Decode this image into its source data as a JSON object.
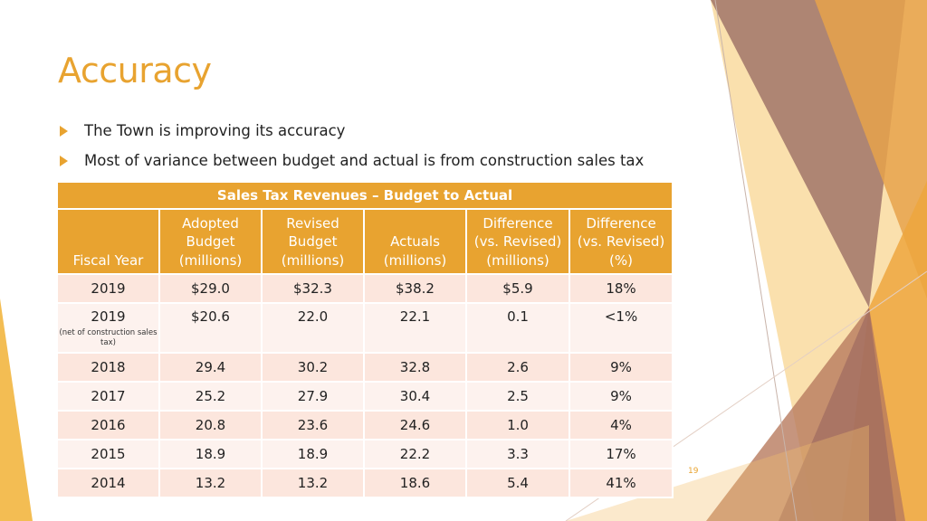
{
  "slide": {
    "title": "Accuracy",
    "bullets": [
      "The Town is improving its accuracy",
      "Most of variance between budget and actual is from construction sales tax"
    ],
    "page_number": "19"
  },
  "table": {
    "caption": "Sales Tax Revenues – Budget to Actual",
    "headers": [
      [
        "Fiscal Year"
      ],
      [
        "Adopted",
        "Budget",
        "(millions)"
      ],
      [
        "Revised",
        "Budget",
        "(millions)"
      ],
      [
        "Actuals",
        "(millions)"
      ],
      [
        "Difference",
        "(vs. Revised)",
        "(millions)"
      ],
      [
        "Difference",
        "(vs. Revised)",
        "(%)"
      ]
    ],
    "rows": [
      {
        "year": "2019",
        "note": "",
        "adopted": "$29.0",
        "revised": "$32.3",
        "actuals": "$38.2",
        "diff": "$5.9",
        "pct": "18%"
      },
      {
        "year": "2019",
        "note": "(net of construction sales tax)",
        "adopted": "$20.6",
        "revised": "22.0",
        "actuals": "22.1",
        "diff": "0.1",
        "pct": "<1%"
      },
      {
        "year": "2018",
        "note": "",
        "adopted": "29.4",
        "revised": "30.2",
        "actuals": "32.8",
        "diff": "2.6",
        "pct": "9%"
      },
      {
        "year": "2017",
        "note": "",
        "adopted": "25.2",
        "revised": "27.9",
        "actuals": "30.4",
        "diff": "2.5",
        "pct": "9%"
      },
      {
        "year": "2016",
        "note": "",
        "adopted": "20.8",
        "revised": "23.6",
        "actuals": "24.6",
        "diff": "1.0",
        "pct": "4%"
      },
      {
        "year": "2015",
        "note": "",
        "adopted": "18.9",
        "revised": "18.9",
        "actuals": "22.2",
        "diff": "3.3",
        "pct": "17%"
      },
      {
        "year": "2014",
        "note": "",
        "adopted": "13.2",
        "revised": "13.2",
        "actuals": "18.6",
        "diff": "5.4",
        "pct": "41%"
      }
    ]
  },
  "colors": {
    "accent": "#e8a330",
    "row_dark": "#fce6dd",
    "row_light": "#fdf2ee"
  }
}
